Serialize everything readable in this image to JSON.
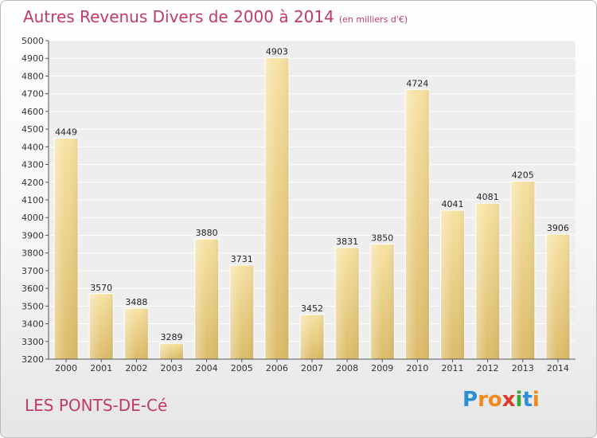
{
  "title": "Autres Revenus Divers de 2000 à 2014",
  "unit_note": "(en milliers d'€)",
  "commune": "LES PONTS-DE-Cé",
  "logo": {
    "letters": [
      "P",
      "r",
      "o",
      "x",
      "i",
      "t",
      "i"
    ],
    "colors": [
      "#2a8fd6",
      "#f08a1c",
      "#f08a1c",
      "#d93a2b",
      "#3aa63a",
      "#2a8fd6",
      "#f08a1c"
    ]
  },
  "colors": {
    "title": "#c0396a",
    "bar_light": "#f7e2a2",
    "bar_dark": "#dcbc6a"
  },
  "chart_data": {
    "type": "bar",
    "title": "Autres Revenus Divers de 2000 à 2014",
    "xlabel": "",
    "ylabel": "",
    "ylim": [
      3200,
      5000
    ],
    "ytick_step": 100,
    "grid": true,
    "categories": [
      "2000",
      "2001",
      "2002",
      "2003",
      "2004",
      "2005",
      "2006",
      "2007",
      "2008",
      "2009",
      "2010",
      "2011",
      "2012",
      "2013",
      "2014"
    ],
    "values": [
      4449,
      3570,
      3488,
      3289,
      3880,
      3731,
      4903,
      3452,
      3831,
      3850,
      4724,
      4041,
      4081,
      4205,
      3906
    ]
  }
}
